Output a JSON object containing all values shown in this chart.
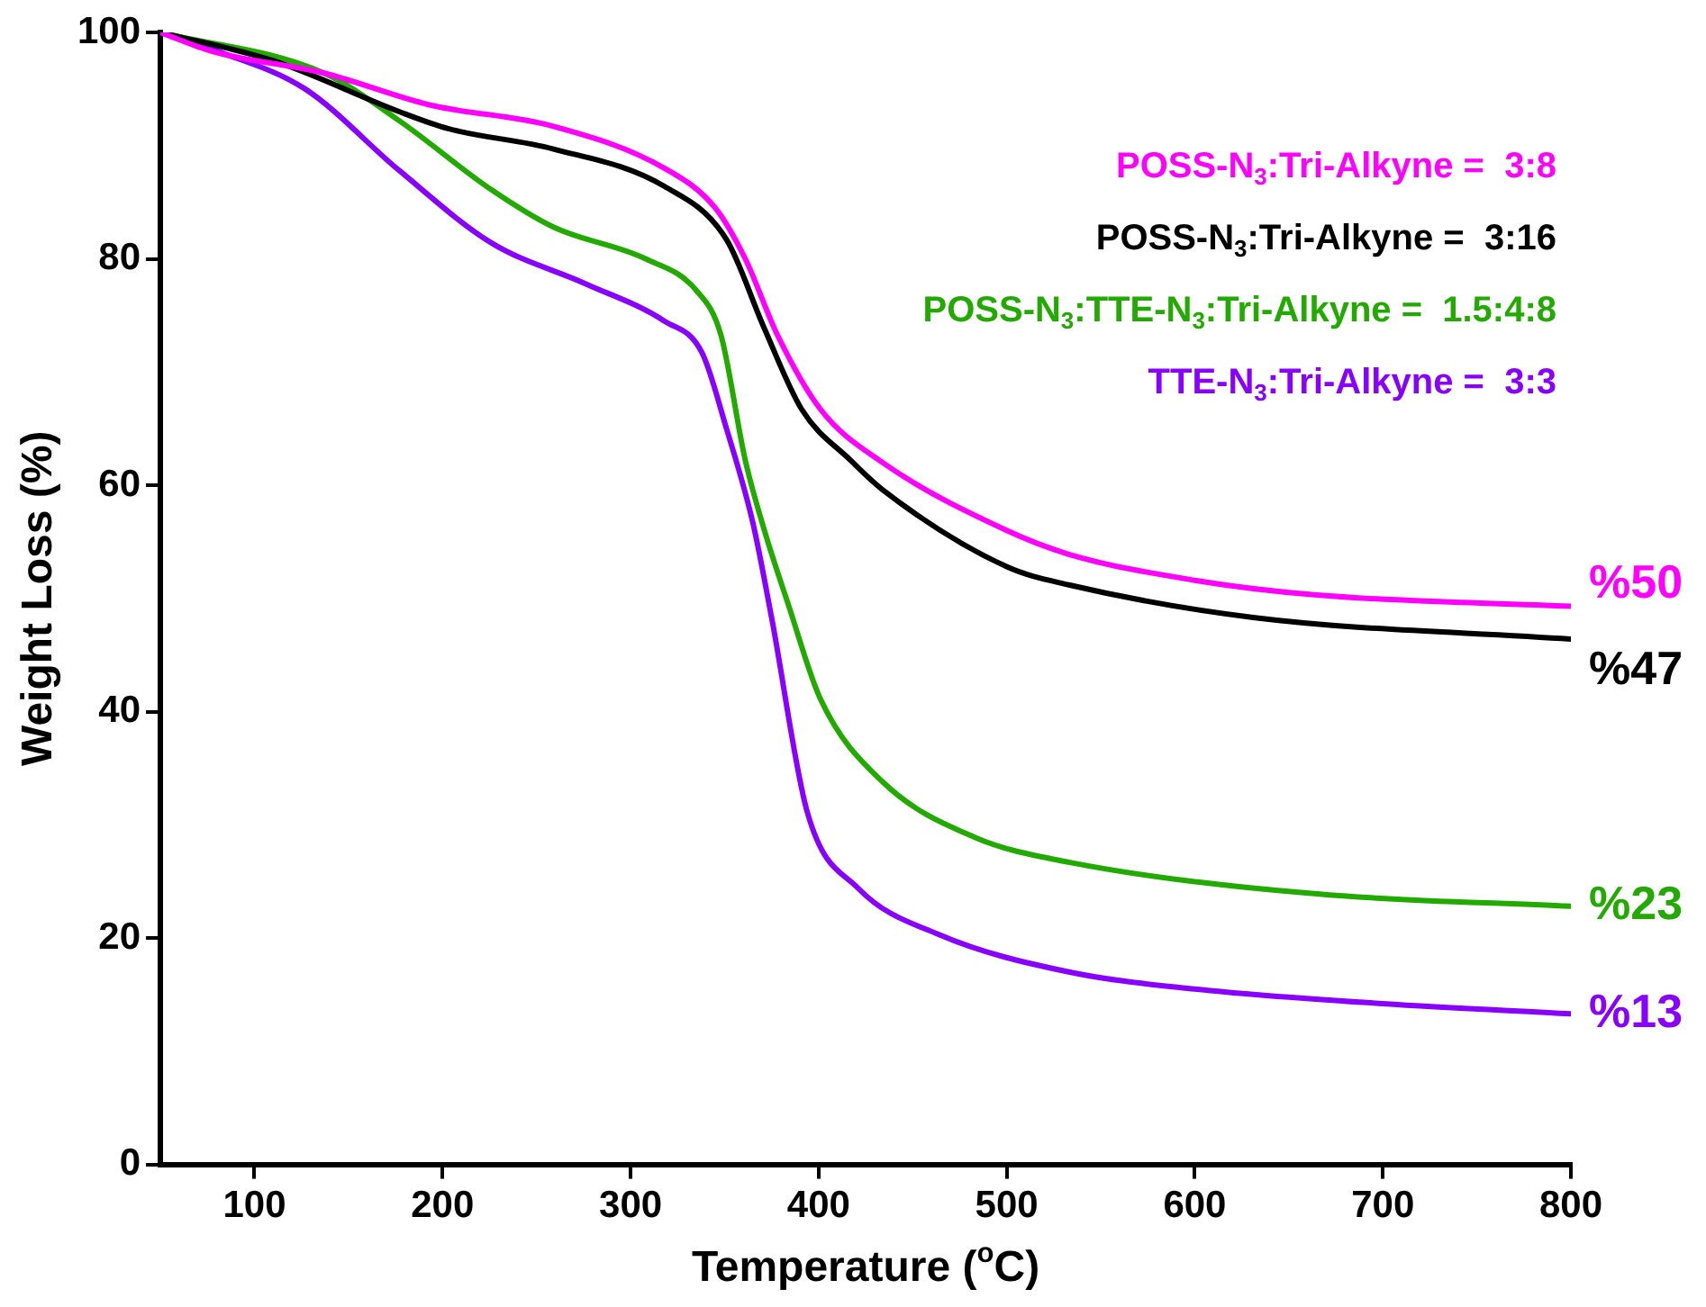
{
  "chart_data": {
    "type": "line",
    "xlabel": "Temperature ($^{o}$C)",
    "ylabel": "Weight Loss (%)",
    "xlim": [
      50,
      800
    ],
    "xticks": [
      100,
      200,
      300,
      400,
      500,
      600,
      700,
      800
    ],
    "ylim": [
      0,
      100
    ],
    "yticks": [
      0,
      20,
      40,
      60,
      80,
      100
    ],
    "legend": "top right",
    "marker": "none",
    "line_style": "solid",
    "series": [
      {
        "name": "POSS-N$_{3}$:Tri-Alkyne =  3:8",
        "color": "#ff00ff",
        "x": [
          50,
          78,
          137,
          193,
          259,
          318,
          345,
          361,
          378,
          401,
          434,
          500,
          533,
          600,
          665,
          800
        ],
        "values": [
          100,
          98.3,
          96.4,
          93.6,
          91.7,
          88,
          84.5,
          80,
          73.3,
          66.7,
          62,
          56,
          53.9,
          51.6,
          50.3,
          49.3
        ]
      },
      {
        "name": "POSS-N$_{3}$:Tri-Alkyne =  3:16",
        "color": "#000000",
        "x": [
          50,
          110,
          177,
          203,
          259,
          318,
          351,
          371,
          391,
          417,
          434,
          500,
          533,
          632,
          800
        ],
        "values": [
          100,
          97.5,
          93,
          91.5,
          89.7,
          86.4,
          81.7,
          73.9,
          66.7,
          62.2,
          59.6,
          52.8,
          51.2,
          48.3,
          46.4
        ]
      },
      {
        "name": "POSS-N$_{3}$:TTE-N$_{3}$:Tri-Alkyne =  1.5:4:8",
        "color": "#22aa00",
        "x": [
          50,
          137,
          177,
          226,
          259,
          308,
          335,
          348,
          361,
          371,
          384,
          401,
          434,
          483,
          533,
          665,
          800
        ],
        "values": [
          100,
          96.4,
          92.2,
          86.1,
          82.8,
          80,
          77.2,
          73.3,
          62.2,
          56.1,
          49.4,
          41.1,
          33.8,
          28.9,
          26.7,
          23.9,
          22.8
        ]
      },
      {
        "name": "TTE-N$_{3}$:Tri-Alkyne =  3:3",
        "color": "#8800ff",
        "x": [
          50,
          81,
          127,
          177,
          226,
          276,
          318,
          338,
          351,
          365,
          375,
          394,
          421,
          464,
          533,
          600,
          700,
          800
        ],
        "values": [
          100,
          98.3,
          95,
          87.8,
          81.4,
          77.8,
          74.5,
          71.7,
          65,
          56.7,
          48.3,
          31.1,
          24.4,
          20.3,
          17,
          15.5,
          14.2,
          13.3
        ]
      }
    ],
    "annotations": [
      "%50",
      "%47",
      "%23",
      "%13"
    ]
  }
}
